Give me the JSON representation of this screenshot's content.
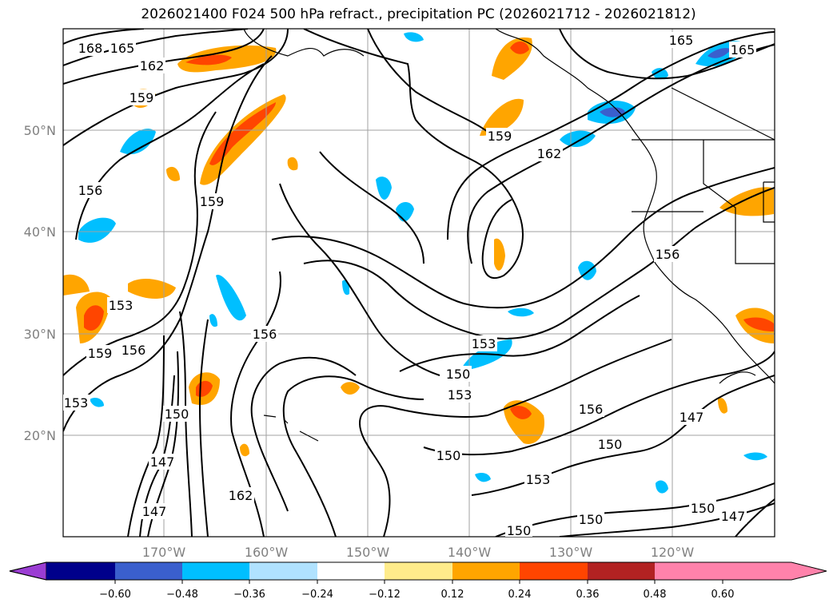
{
  "title": "2026021400 F024 500 hPa refract., precipitation PC (2026021712 - 2026021812)",
  "map": {
    "lat_labels": [
      "50°N",
      "40°N",
      "30°N",
      "20°N"
    ],
    "lon_labels": [
      "170°W",
      "160°W",
      "150°W",
      "140°W",
      "130°W",
      "120°W"
    ],
    "contour_labels": [
      "168",
      "165",
      "162",
      "159",
      "156",
      "159",
      "159",
      "162",
      "165",
      "165",
      "156",
      "153",
      "159",
      "156",
      "153",
      "150",
      "147",
      "147",
      "162",
      "156",
      "153",
      "150",
      "153",
      "150",
      "156",
      "150",
      "153",
      "150",
      "150",
      "147",
      "150",
      "147"
    ]
  },
  "colorbar": {
    "ticks": [
      "−0.60",
      "−0.48",
      "−0.36",
      "−0.24",
      "−0.12",
      "0.12",
      "0.24",
      "0.36",
      "0.48",
      "0.60"
    ],
    "colors": [
      "#9b3dd3",
      "#00008b",
      "#3a5fcd",
      "#00bfff",
      "#b0e2ff",
      "#ffffff",
      "#ffec8b",
      "#ffa500",
      "#ff4500",
      "#b22222",
      "#ff82ab"
    ]
  }
}
